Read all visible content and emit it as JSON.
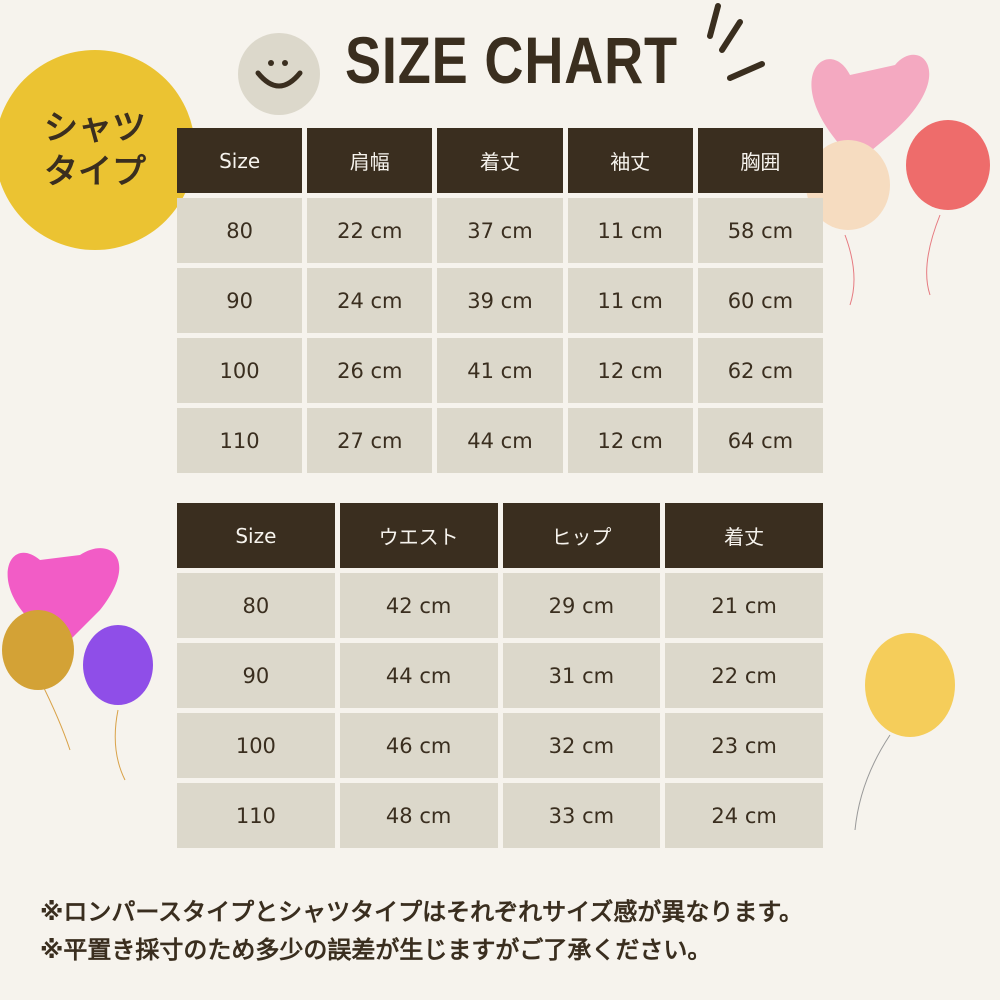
{
  "badge": {
    "line1": "シャツ",
    "line2": "タイプ"
  },
  "title": "SIZE CHART",
  "colors": {
    "background": "#f6f3ed",
    "header": "#3a2e1f",
    "cell": "#dcd8cb",
    "badge": "#ebc332"
  },
  "table1": {
    "headers": [
      "Size",
      "肩幅",
      "着丈",
      "袖丈",
      "胸囲"
    ],
    "rows": [
      [
        "80",
        "22 cm",
        "37 cm",
        "11 cm",
        "58 cm"
      ],
      [
        "90",
        "24 cm",
        "39 cm",
        "11 cm",
        "60 cm"
      ],
      [
        "100",
        "26 cm",
        "41 cm",
        "12 cm",
        "62 cm"
      ],
      [
        "110",
        "27 cm",
        "44 cm",
        "12 cm",
        "64 cm"
      ]
    ]
  },
  "table2": {
    "headers": [
      "Size",
      "ウエスト",
      "ヒップ",
      "着丈"
    ],
    "rows": [
      [
        "80",
        "42 cm",
        "29 cm",
        "21 cm"
      ],
      [
        "90",
        "44 cm",
        "31 cm",
        "22 cm"
      ],
      [
        "100",
        "46 cm",
        "32 cm",
        "23 cm"
      ],
      [
        "110",
        "48 cm",
        "33 cm",
        "24 cm"
      ]
    ]
  },
  "notes": [
    "※ロンパースタイプとシャツタイプはそれぞれサイズ感が異なります。",
    "※平置き採寸のため多少の誤差が生じますがご了承ください。"
  ]
}
